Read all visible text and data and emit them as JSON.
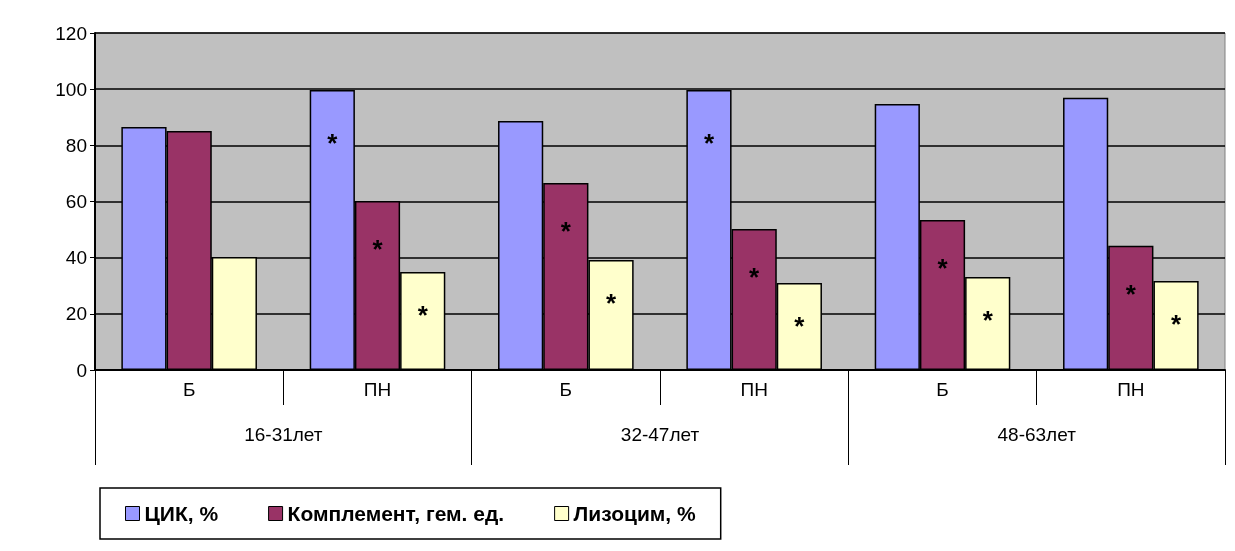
{
  "chart_data": {
    "type": "bar",
    "categories": [
      "Б",
      "ПН",
      "Б",
      "ПН",
      "Б",
      "ПН"
    ],
    "series": [
      {
        "name": "ЦИК, %",
        "color": "#9999ff",
        "values": [
          86.5,
          99.7,
          88.7,
          99.7,
          94.7,
          96.9
        ],
        "value_labels": [
          null,
          "*",
          null,
          "*",
          null,
          null
        ]
      },
      {
        "name": "Комплемент, гем. ед.",
        "color": "#993366",
        "values": [
          85.1,
          60.2,
          66.6,
          50.2,
          53.4,
          44.2
        ],
        "value_labels": [
          null,
          "*",
          "*",
          "*",
          "*",
          "*"
        ]
      },
      {
        "name": "Лизоцим, %",
        "color": "#ffffcc",
        "values": [
          40.2,
          34.9,
          39.2,
          31,
          33.1,
          31.7
        ],
        "value_labels": [
          null,
          "*",
          "*",
          "*",
          "*",
          "*"
        ]
      }
    ],
    "annotations": [
      "16-31лет",
      "32-47лет",
      "48-63лет"
    ],
    "ylim": [
      0,
      120
    ],
    "yticks": [
      0,
      20,
      40,
      60,
      80,
      100,
      120
    ],
    "grid": "y",
    "legend": "bottom"
  }
}
